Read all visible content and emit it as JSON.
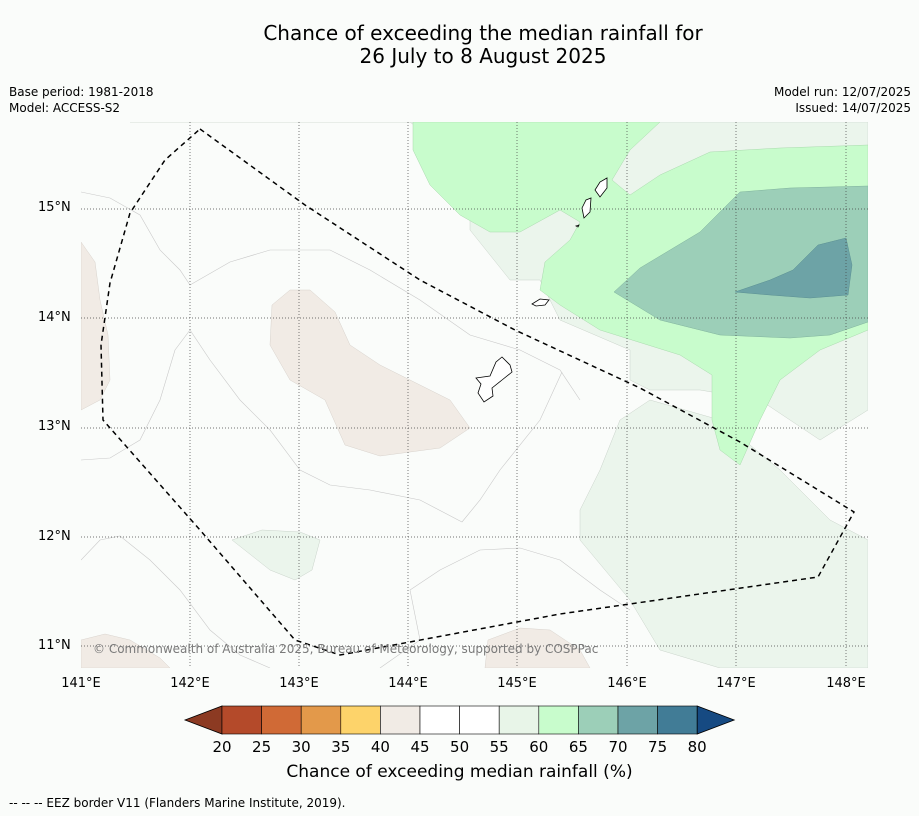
{
  "title": {
    "line1": "Chance of exceeding the median rainfall for",
    "line2": "26 July to 8 August 2025"
  },
  "meta": {
    "base_period": "Base period: 1981-2018",
    "model": "Model: ACCESS-S2",
    "model_run": "Model run: 12/07/2025",
    "issued": "Issued: 14/07/2025"
  },
  "map": {
    "lat_labels": [
      "15°N",
      "14°N",
      "13°N",
      "12°N",
      "11°N"
    ],
    "lon_labels": [
      "141°E",
      "142°E",
      "143°E",
      "144°E",
      "145°E",
      "146°E",
      "147°E",
      "148°E"
    ],
    "copyright": "© Commonwealth of Australia 2025, Bureau of Meteorology, supported by COSPPac"
  },
  "colorbar": {
    "ticks": [
      "20",
      "25",
      "30",
      "35",
      "40",
      "45",
      "50",
      "55",
      "60",
      "65",
      "70",
      "75",
      "80"
    ],
    "colors": [
      "#8c3a22",
      "#b44a2a",
      "#d06a36",
      "#e3994a",
      "#fdd36a",
      "#f1ebe5",
      "#ffffff",
      "#ffffff",
      "#e8f5e8",
      "#c8fccc",
      "#9ccfb8",
      "#6da3a6",
      "#417c96",
      "#164a82"
    ],
    "label": "Chance of exceeding median rainfall (%)"
  },
  "footnote": "--  --  -- EEZ border V11 (Flanders Marine Institute, 2019)."
}
